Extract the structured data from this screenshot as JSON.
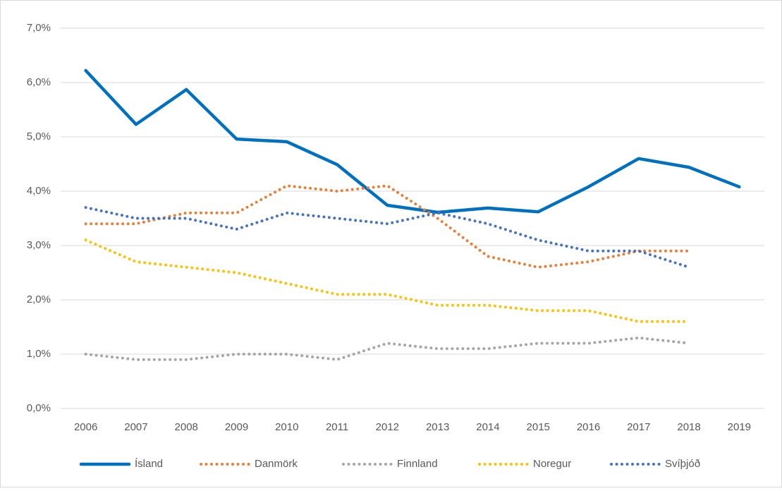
{
  "chart_data": {
    "type": "line",
    "categories": [
      "2006",
      "2007",
      "2008",
      "2009",
      "2010",
      "2011",
      "2012",
      "2013",
      "2014",
      "2015",
      "2016",
      "2017",
      "2018",
      "2019"
    ],
    "series": [
      {
        "name": "Ísland",
        "color": "#0070c0",
        "style": "solid",
        "values": [
          6.22,
          5.23,
          5.87,
          4.96,
          4.91,
          4.49,
          3.74,
          3.61,
          3.69,
          3.62,
          4.08,
          4.6,
          4.44,
          4.08
        ]
      },
      {
        "name": "Danmörk",
        "color": "#ed7d31",
        "style": "dotted",
        "values": [
          3.4,
          3.4,
          3.6,
          3.6,
          4.1,
          4.0,
          4.1,
          3.5,
          2.8,
          2.6,
          2.7,
          2.9,
          2.9,
          null
        ]
      },
      {
        "name": "Finnland",
        "color": "#a5a5a5",
        "style": "dotted",
        "values": [
          1.0,
          0.9,
          0.9,
          1.0,
          1.0,
          0.9,
          1.2,
          1.1,
          1.1,
          1.2,
          1.2,
          1.3,
          1.2,
          null
        ]
      },
      {
        "name": "Noregur",
        "color": "#ffc000",
        "style": "dotted",
        "values": [
          3.1,
          2.7,
          2.6,
          2.5,
          2.3,
          2.1,
          2.1,
          1.9,
          1.9,
          1.8,
          1.8,
          1.6,
          1.6,
          null
        ]
      },
      {
        "name": "Svíþjóð",
        "color": "#4472c4",
        "style": "dotted",
        "values": [
          3.7,
          3.5,
          3.5,
          3.3,
          3.6,
          3.5,
          3.4,
          3.6,
          3.4,
          3.1,
          2.9,
          2.9,
          2.6,
          null
        ]
      }
    ],
    "ylim": [
      0,
      7
    ],
    "yticks": [
      {
        "value": 0,
        "label": "0,0%"
      },
      {
        "value": 1,
        "label": "1,0%"
      },
      {
        "value": 2,
        "label": "2,0%"
      },
      {
        "value": 3,
        "label": "3,0%"
      },
      {
        "value": 4,
        "label": "4,0%"
      },
      {
        "value": 5,
        "label": "5,0%"
      },
      {
        "value": 6,
        "label": "6,0%"
      },
      {
        "value": 7,
        "label": "7,0%"
      }
    ],
    "grid": true,
    "legend": "bottom"
  }
}
